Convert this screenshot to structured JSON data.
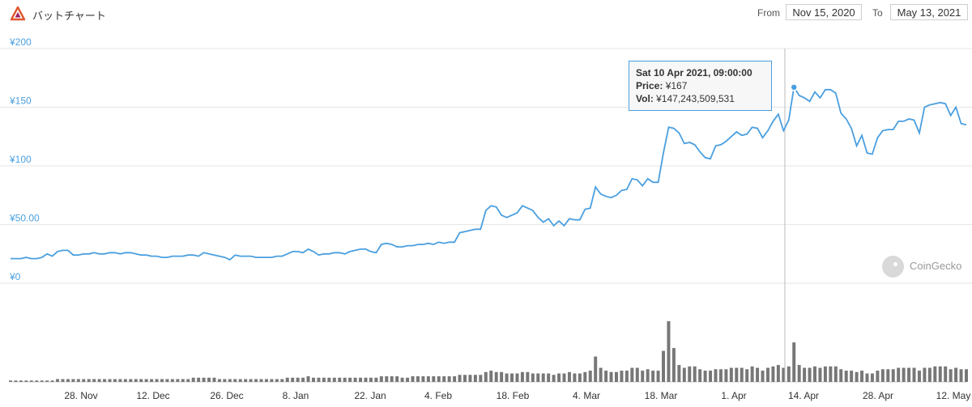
{
  "header": {
    "title": "バットチャート",
    "from_label": "From",
    "from_value": "Nov 15, 2020",
    "to_label": "To",
    "to_value": "May 13, 2021"
  },
  "tooltip": {
    "date": "Sat 10 Apr 2021, 09:00:00",
    "price_label": "Price:",
    "price_value": "¥167",
    "vol_label": "Vol:",
    "vol_value": "¥147,243,509,531"
  },
  "credit": {
    "text": "CoinGecko",
    "icon": "gecko-icon"
  },
  "colors": {
    "line": "#4a9fe0",
    "volume": "#777777",
    "grid": "#e6e6e6",
    "crosshair": "#bbbbbb",
    "logo": "#e0562f"
  },
  "chart_data": {
    "type": "line",
    "title": "",
    "xlabel": "",
    "ylabel": "",
    "yticks": [
      "¥0",
      "¥50.00",
      "¥100",
      "¥150",
      "¥200"
    ],
    "ylim": [
      0,
      200
    ],
    "xticks": [
      "28. Nov",
      "12. Dec",
      "26. Dec",
      "8. Jan",
      "22. Jan",
      "4. Feb",
      "18. Feb",
      "4. Mar",
      "18. Mar",
      "1. Apr",
      "14. Apr",
      "28. Apr",
      "12. May"
    ],
    "grid": true,
    "highlight": {
      "date": "Sat 10 Apr 2021, 09:00:00",
      "price": 167,
      "volume": 147243509531
    },
    "series": [
      {
        "values": [
          21,
          21,
          21,
          22,
          21,
          21,
          22,
          25,
          23,
          27,
          28,
          28,
          24,
          24,
          25,
          25,
          26,
          25,
          25,
          26,
          26,
          25,
          26,
          26,
          25,
          24,
          24,
          23,
          23,
          22,
          22,
          23,
          23,
          23,
          24,
          24,
          23,
          26,
          25,
          24,
          23,
          22,
          20,
          24,
          23,
          23,
          23,
          22,
          22,
          22,
          22,
          23,
          23,
          25,
          27,
          27,
          26,
          29,
          27,
          24,
          25,
          25,
          26,
          26,
          25,
          27,
          28,
          29,
          29,
          27,
          26,
          33,
          34,
          33,
          31,
          31,
          32,
          32,
          33,
          33,
          34,
          33,
          35,
          34,
          35,
          35,
          43,
          44,
          45,
          46,
          46,
          62,
          66,
          65,
          58,
          56,
          58,
          60,
          66,
          64,
          62,
          56,
          52,
          55,
          49,
          53,
          49,
          55,
          54,
          54,
          63,
          64,
          82,
          76,
          74,
          73,
          75,
          79,
          80,
          89,
          88,
          83,
          89,
          86,
          86,
          111,
          133,
          132,
          128,
          119,
          120,
          118,
          112,
          107,
          106,
          117,
          118,
          121,
          125,
          129,
          126,
          127,
          133,
          132,
          124,
          130,
          138,
          144,
          130,
          139,
          167,
          160,
          158,
          155,
          163,
          158,
          165,
          165,
          162,
          145,
          140,
          132,
          117,
          126,
          111,
          110,
          124,
          130,
          131,
          131,
          138,
          138,
          140,
          139,
          128,
          150,
          152,
          153,
          154,
          153,
          143,
          150,
          136,
          135
        ],
        "volume_rel": [
          1,
          1,
          1,
          1,
          1,
          1,
          1,
          1,
          1,
          2,
          2,
          2,
          2,
          2,
          2,
          2,
          2,
          2,
          2,
          2,
          2,
          2,
          2,
          2,
          2,
          2,
          2,
          2,
          2,
          2,
          2,
          2,
          2,
          2,
          2,
          3,
          3,
          3,
          3,
          3,
          2,
          2,
          2,
          2,
          2,
          2,
          2,
          2,
          2,
          2,
          2,
          2,
          2,
          3,
          3,
          3,
          3,
          4,
          3,
          3,
          3,
          3,
          3,
          3,
          3,
          3,
          3,
          3,
          3,
          3,
          3,
          4,
          4,
          4,
          4,
          3,
          3,
          4,
          4,
          4,
          4,
          4,
          4,
          4,
          4,
          4,
          5,
          5,
          5,
          5,
          5,
          7,
          8,
          7,
          7,
          6,
          6,
          6,
          7,
          7,
          6,
          6,
          6,
          6,
          5,
          6,
          6,
          7,
          6,
          6,
          7,
          8,
          18,
          10,
          8,
          7,
          7,
          8,
          8,
          10,
          10,
          8,
          9,
          8,
          8,
          22,
          43,
          24,
          12,
          10,
          11,
          11,
          9,
          8,
          8,
          9,
          9,
          9,
          10,
          10,
          10,
          9,
          11,
          10,
          8,
          10,
          11,
          12,
          10,
          11,
          28,
          12,
          10,
          10,
          11,
          10,
          11,
          11,
          11,
          9,
          8,
          8,
          7,
          8,
          6,
          6,
          8,
          9,
          9,
          9,
          10,
          10,
          10,
          10,
          8,
          10,
          10,
          11,
          11,
          11,
          9,
          10,
          9,
          9
        ]
      }
    ]
  }
}
